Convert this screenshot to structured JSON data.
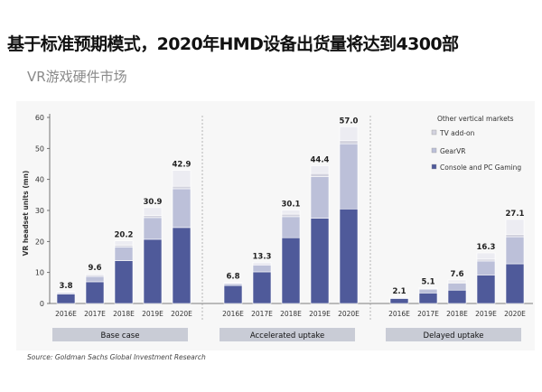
{
  "headline": "基于标准预期模式，2020年HMD设备出货量将达到4300部",
  "subtitle": "VR游戏硬件市场",
  "source": "Source: Goldman Sachs Global Investment Research",
  "chart_data": {
    "type": "bar",
    "stacked": true,
    "ylabel": "VR headset units (mn)",
    "ylim": [
      0,
      60
    ],
    "yticks": [
      0,
      10,
      20,
      30,
      40,
      50,
      60
    ],
    "grid": false,
    "legend_position": "top-right",
    "groups": [
      {
        "name": "Base case",
        "categories": [
          "2016E",
          "2017E",
          "2018E",
          "2019E",
          "2020E"
        ],
        "totals": [
          "3.8",
          "9.6",
          "20.2",
          "30.9",
          "42.9"
        ],
        "series": [
          {
            "name": "Console and PC Gaming",
            "values": [
              3.0,
              7.0,
              13.8,
              20.7,
              24.5
            ]
          },
          {
            "name": "GearVR",
            "values": [
              0.5,
              1.7,
              4.4,
              7.0,
              12.5
            ]
          },
          {
            "name": "TV add-on",
            "values": [
              0.1,
              0.4,
              0.6,
              0.7,
              0.8
            ]
          },
          {
            "name": "Other vertical markets",
            "values": [
              0.2,
              0.5,
              1.4,
              2.5,
              5.1
            ]
          }
        ]
      },
      {
        "name": "Accelerated uptake",
        "categories": [
          "2016E",
          "2017E",
          "2018E",
          "2019E",
          "2020E"
        ],
        "totals": [
          "6.8",
          "13.3",
          "30.1",
          "44.4",
          "57.0"
        ],
        "series": [
          {
            "name": "Console and PC Gaming",
            "values": [
              5.8,
              10.2,
              21.2,
              27.5,
              30.5
            ]
          },
          {
            "name": "GearVR",
            "values": [
              0.6,
              2.2,
              6.8,
              13.4,
              21.0
            ]
          },
          {
            "name": "TV add-on",
            "values": [
              0.1,
              0.4,
              0.8,
              1.0,
              1.0
            ]
          },
          {
            "name": "Other vertical markets",
            "values": [
              0.3,
              0.5,
              1.3,
              2.5,
              4.5
            ]
          }
        ]
      },
      {
        "name": "Delayed uptake",
        "categories": [
          "2016E",
          "2017E",
          "2018E",
          "2019E",
          "2020E"
        ],
        "totals": [
          "2.1",
          "5.1",
          "7.6",
          "16.3",
          "27.1"
        ],
        "series": [
          {
            "name": "Console and PC Gaming",
            "values": [
              1.6,
              3.4,
              4.3,
              9.2,
              12.8
            ]
          },
          {
            "name": "GearVR",
            "values": [
              0.3,
              1.2,
              2.2,
              4.5,
              8.7
            ]
          },
          {
            "name": "TV add-on",
            "values": [
              0.1,
              0.2,
              0.4,
              0.6,
              0.8
            ]
          },
          {
            "name": "Other vertical markets",
            "values": [
              0.1,
              0.3,
              0.7,
              2.0,
              4.8
            ]
          }
        ]
      }
    ],
    "legend": [
      {
        "name": "Other vertical markets",
        "color": "#ececf2"
      },
      {
        "name": "TV add-on",
        "color": "#d2d2de"
      },
      {
        "name": "GearVR",
        "color": "#bcc0d9"
      },
      {
        "name": "Console and PC Gaming",
        "color": "#4f5a9a"
      }
    ],
    "colors": {
      "Console and PC Gaming": "#4f5a9a",
      "GearVR": "#bcc0d9",
      "TV add-on": "#d2d2de",
      "Other vertical markets": "#ececf2"
    }
  }
}
